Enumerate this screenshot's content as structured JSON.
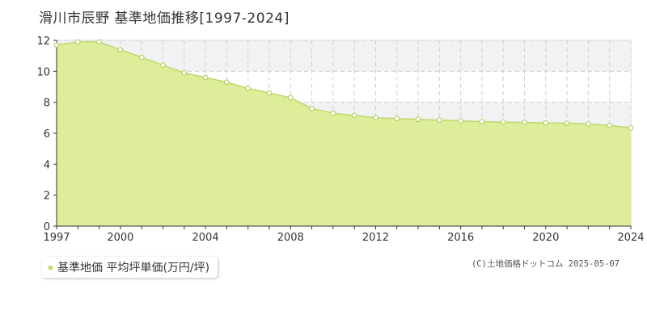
{
  "title": "滑川市辰野  基準地価推移[1997-2024]",
  "credit": "(C)土地価格ドットコム 2025-05-07",
  "colors": {
    "fill": "#dbec94",
    "line": "#bcd96a",
    "point_fill": "#ffffff",
    "point_stroke": "#aacc55",
    "grid": "#cfcfcf",
    "band": "#f2f2f4",
    "axis": "#333333"
  },
  "chart_data": {
    "type": "area",
    "x": [
      1997,
      1998,
      1999,
      2000,
      2001,
      2002,
      2003,
      2004,
      2005,
      2006,
      2007,
      2008,
      2009,
      2010,
      2011,
      2012,
      2013,
      2014,
      2015,
      2016,
      2017,
      2018,
      2019,
      2020,
      2021,
      2022,
      2023,
      2024
    ],
    "series": [
      {
        "name": "基準地価 平均坪単価(万円/坪)",
        "values": [
          11.7,
          11.9,
          11.9,
          11.4,
          10.9,
          10.4,
          9.9,
          9.6,
          9.3,
          8.9,
          8.6,
          8.3,
          7.6,
          7.3,
          7.15,
          7.0,
          6.95,
          6.9,
          6.85,
          6.8,
          6.75,
          6.72,
          6.7,
          6.67,
          6.65,
          6.6,
          6.5,
          6.35
        ]
      }
    ],
    "x_ticks": [
      "1997",
      "2000",
      "2004",
      "2008",
      "2012",
      "2016",
      "2020",
      "2024"
    ],
    "y_ticks": [
      "0",
      "2",
      "4",
      "6",
      "8",
      "10",
      "12"
    ],
    "ylim": [
      0,
      12
    ],
    "xlim": [
      1997,
      2024
    ],
    "grid": true,
    "legend": "bottom-left"
  }
}
